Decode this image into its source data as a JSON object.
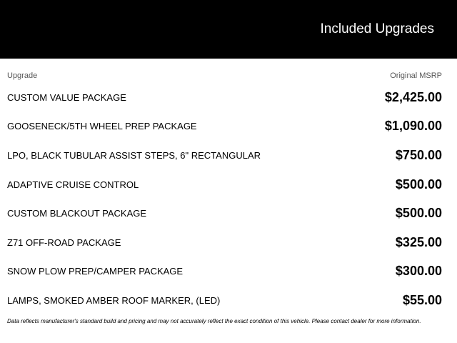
{
  "header": {
    "title": "Included Upgrades"
  },
  "table": {
    "columns": [
      "Upgrade",
      "Original MSRP"
    ],
    "rows": [
      [
        "CUSTOM VALUE PACKAGE",
        "$2,425.00"
      ],
      [
        "GOOSENECK/5TH WHEEL PREP PACKAGE",
        "$1,090.00"
      ],
      [
        "LPO, BLACK TUBULAR ASSIST STEPS, 6\" RECTANGULAR",
        "$750.00"
      ],
      [
        "ADAPTIVE CRUISE CONTROL",
        "$500.00"
      ],
      [
        "CUSTOM BLACKOUT PACKAGE",
        "$500.00"
      ],
      [
        "Z71 OFF-ROAD PACKAGE",
        "$325.00"
      ],
      [
        "SNOW PLOW PREP/CAMPER PACKAGE",
        "$300.00"
      ],
      [
        "LAMPS, SMOKED AMBER ROOF MARKER, (LED)",
        "$55.00"
      ]
    ]
  },
  "footer": {
    "note": "Data reflects manufacturer's standard build and pricing and may not accurately reflect the exact condition of this vehicle. Please contact dealer for more information."
  }
}
